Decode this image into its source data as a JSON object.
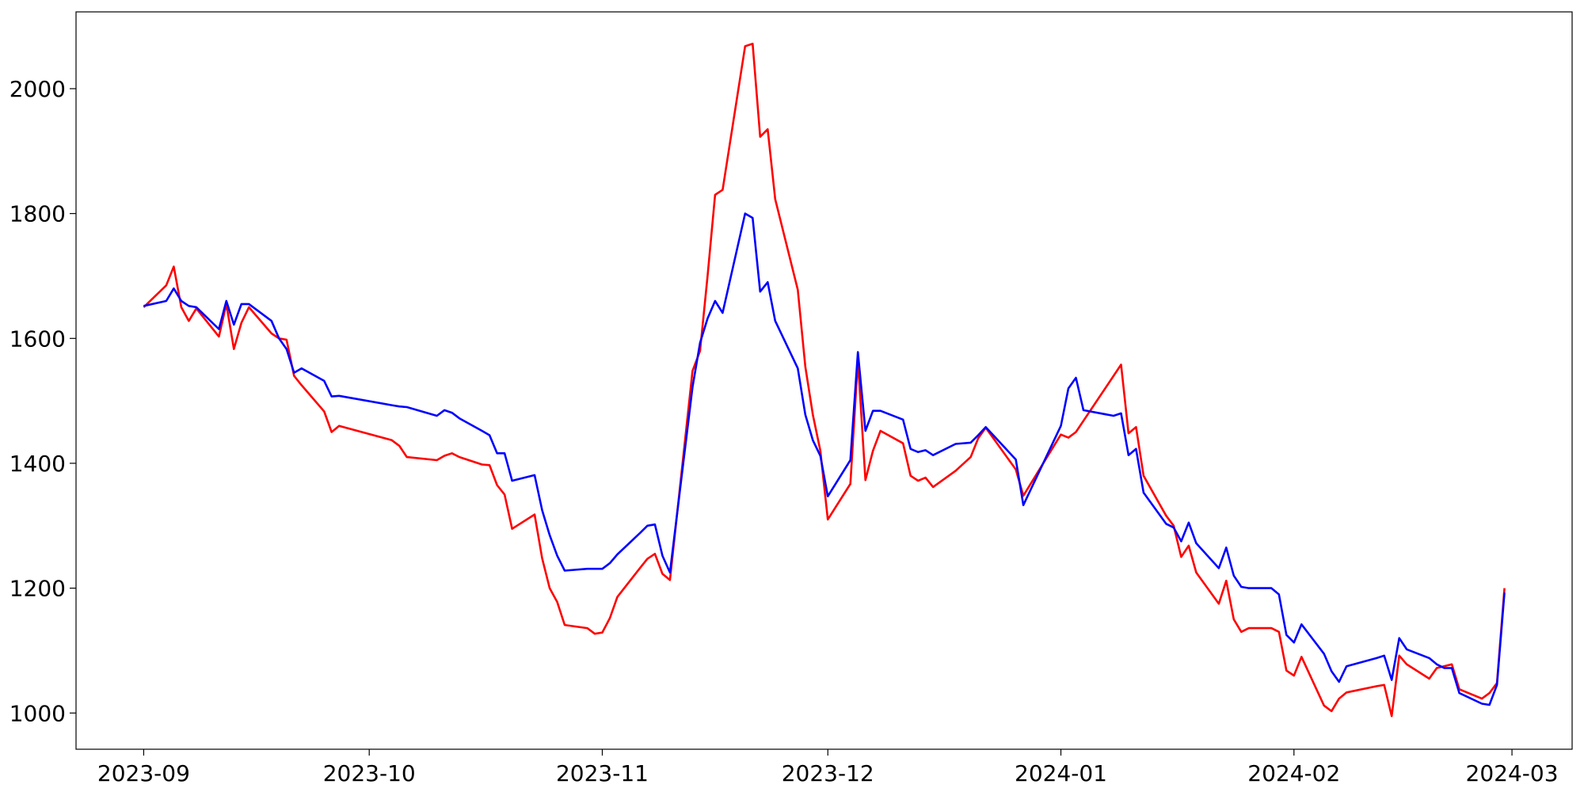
{
  "chart_data": {
    "type": "line",
    "x": [
      0,
      3,
      4,
      5,
      6,
      7,
      10,
      11,
      12,
      13,
      14,
      17,
      18,
      19,
      20,
      21,
      24,
      25,
      26,
      33,
      34,
      35,
      39,
      40,
      41,
      42,
      45,
      46,
      47,
      48,
      49,
      52,
      53,
      54,
      55,
      56,
      59,
      60,
      61,
      62,
      63,
      66,
      67,
      68,
      69,
      70,
      73,
      74,
      75,
      76,
      77,
      80,
      81,
      82,
      83,
      84,
      87,
      88,
      89,
      90,
      91,
      94,
      95,
      96,
      97,
      98,
      101,
      102,
      103,
      104,
      105,
      108,
      110,
      111,
      112,
      116,
      117,
      122,
      123,
      124,
      125,
      129,
      130,
      131,
      132,
      133,
      136,
      137,
      138,
      139,
      140,
      143,
      144,
      145,
      146,
      147,
      150,
      151,
      152,
      153,
      154,
      157,
      158,
      159,
      160,
      164,
      165,
      166,
      167,
      168,
      171,
      172,
      173,
      174,
      175,
      178,
      179,
      180,
      181
    ],
    "series": [
      {
        "color": "red",
        "values": [
          1650,
          1685,
          1715,
          1650,
          1628,
          1648,
          1603,
          1655,
          1583,
          1625,
          1650,
          1608,
          1600,
          1598,
          1540,
          1525,
          1483,
          1450,
          1460,
          1437,
          1428,
          1410,
          1405,
          1412,
          1416,
          1410,
          1398,
          1397,
          1365,
          1350,
          1295,
          1318,
          1248,
          1200,
          1178,
          1141,
          1136,
          1127,
          1129,
          1152,
          1186,
          1232,
          1247,
          1255,
          1223,
          1213,
          1548,
          1580,
          1700,
          1830,
          1838,
          2068,
          2072,
          1923,
          1935,
          1823,
          1678,
          1555,
          1478,
          1420,
          1310,
          1367,
          1565,
          1373,
          1420,
          1452,
          1432,
          1380,
          1372,
          1377,
          1362,
          1388,
          1410,
          1440,
          1457,
          1390,
          1348,
          1446,
          1441,
          1450,
          1468,
          1540,
          1558,
          1448,
          1458,
          1380,
          1316,
          1300,
          1250,
          1268,
          1225,
          1175,
          1212,
          1150,
          1130,
          1136,
          1136,
          1130,
          1068,
          1060,
          1090,
          1012,
          1003,
          1023,
          1033,
          1043,
          1045,
          995,
          1092,
          1078,
          1055,
          1072,
          1075,
          1078,
          1038,
          1023,
          1032,
          1048,
          1200
        ]
      },
      {
        "color": "blue",
        "values": [
          1652,
          1660,
          1680,
          1660,
          1652,
          1650,
          1615,
          1660,
          1622,
          1655,
          1655,
          1628,
          1600,
          1583,
          1545,
          1552,
          1532,
          1507,
          1508,
          1493,
          1491,
          1490,
          1476,
          1485,
          1481,
          1472,
          1452,
          1445,
          1416,
          1416,
          1372,
          1381,
          1325,
          1285,
          1252,
          1228,
          1231,
          1231,
          1231,
          1240,
          1254,
          1288,
          1300,
          1302,
          1252,
          1225,
          1522,
          1593,
          1632,
          1660,
          1641,
          1800,
          1793,
          1675,
          1690,
          1628,
          1552,
          1478,
          1437,
          1412,
          1347,
          1405,
          1578,
          1452,
          1484,
          1484,
          1470,
          1423,
          1418,
          1421,
          1413,
          1431,
          1433,
          1445,
          1458,
          1406,
          1333,
          1460,
          1520,
          1537,
          1485,
          1476,
          1480,
          1413,
          1423,
          1353,
          1303,
          1297,
          1275,
          1305,
          1272,
          1232,
          1265,
          1220,
          1202,
          1200,
          1200,
          1190,
          1125,
          1113,
          1142,
          1095,
          1067,
          1050,
          1075,
          1088,
          1092,
          1053,
          1120,
          1102,
          1088,
          1078,
          1072,
          1072,
          1032,
          1015,
          1013,
          1045,
          1193
        ]
      }
    ],
    "xlim": [
      -9,
      190
    ],
    "xticks": [
      {
        "value": 0,
        "label": "2023-09"
      },
      {
        "value": 30,
        "label": "2023-10"
      },
      {
        "value": 61,
        "label": "2023-11"
      },
      {
        "value": 91,
        "label": "2023-12"
      },
      {
        "value": 122,
        "label": "2024-01"
      },
      {
        "value": 153,
        "label": "2024-02"
      },
      {
        "value": 182,
        "label": "2024-03"
      }
    ],
    "ylim": [
      942,
      2123
    ],
    "yticks": [
      1000,
      1200,
      1400,
      1600,
      1800,
      2000
    ],
    "grid": false
  }
}
